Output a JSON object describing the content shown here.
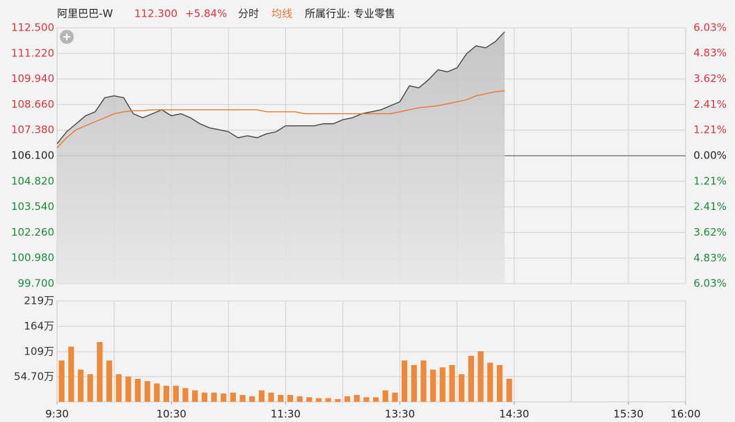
{
  "header": {
    "name": "阿里巴巴-W",
    "price": "112.300",
    "change": "+5.84%",
    "industry": "所属行业: 专业零售"
  },
  "chart_data": [
    {
      "type": "line",
      "xlim": [
        0,
        330
      ],
      "x": [
        0,
        5,
        10,
        15,
        20,
        25,
        30,
        35,
        40,
        45,
        50,
        55,
        60,
        65,
        70,
        75,
        80,
        85,
        90,
        95,
        100,
        105,
        110,
        115,
        120,
        125,
        130,
        135,
        140,
        145,
        150,
        155,
        160,
        165,
        170,
        175,
        180,
        185,
        190,
        195,
        200,
        205,
        210,
        215,
        220,
        225,
        230,
        235
      ],
      "series": [
        {
          "name": "分时",
          "color": "#444444",
          "values": [
            106.7,
            107.3,
            107.7,
            108.1,
            108.3,
            109.0,
            109.1,
            109.0,
            108.2,
            108.0,
            108.2,
            108.4,
            108.1,
            108.2,
            108.0,
            107.7,
            107.5,
            107.4,
            107.3,
            107.0,
            107.1,
            107.0,
            107.2,
            107.3,
            107.6,
            107.6,
            107.6,
            107.6,
            107.7,
            107.7,
            107.9,
            108.0,
            108.2,
            108.3,
            108.4,
            108.6,
            108.8,
            109.6,
            109.5,
            109.9,
            110.4,
            110.3,
            110.5,
            111.2,
            111.6,
            111.5,
            111.8,
            112.3
          ]
        },
        {
          "name": "均线",
          "color": "#e8762d",
          "values": [
            106.5,
            107.0,
            107.4,
            107.6,
            107.8,
            108.0,
            108.2,
            108.3,
            108.35,
            108.35,
            108.4,
            108.4,
            108.4,
            108.4,
            108.4,
            108.4,
            108.4,
            108.4,
            108.4,
            108.4,
            108.4,
            108.4,
            108.3,
            108.3,
            108.3,
            108.3,
            108.2,
            108.2,
            108.2,
            108.2,
            108.2,
            108.2,
            108.2,
            108.2,
            108.2,
            108.2,
            108.3,
            108.4,
            108.5,
            108.55,
            108.6,
            108.7,
            108.8,
            108.9,
            109.1,
            109.2,
            109.3,
            109.35
          ]
        }
      ],
      "ylim": [
        99.7,
        112.5
      ],
      "yticks": [
        {
          "value": 112.5,
          "label": "112.500"
        },
        {
          "value": 111.22,
          "label": "111.220"
        },
        {
          "value": 109.94,
          "label": "109.940"
        },
        {
          "value": 108.66,
          "label": "108.660"
        },
        {
          "value": 107.38,
          "label": "107.380"
        },
        {
          "value": 106.1,
          "label": "106.100"
        },
        {
          "value": 104.82,
          "label": "104.820"
        },
        {
          "value": 103.54,
          "label": "103.540"
        },
        {
          "value": 102.26,
          "label": "102.260"
        },
        {
          "value": 100.98,
          "label": "100.980"
        },
        {
          "value": 99.7,
          "label": "99.700"
        }
      ],
      "y2lim": [
        -6.03,
        6.03
      ],
      "y2ticks": [
        {
          "value": 6.03,
          "label": "6.03%"
        },
        {
          "value": 4.83,
          "label": "4.83%"
        },
        {
          "value": 3.62,
          "label": "3.62%"
        },
        {
          "value": 2.41,
          "label": "2.41%"
        },
        {
          "value": 1.21,
          "label": "1.21%"
        },
        {
          "value": 0,
          "label": "0.00%"
        },
        {
          "value": -1.21,
          "label": "1.21%"
        },
        {
          "value": -2.41,
          "label": "2.41%"
        },
        {
          "value": -3.62,
          "label": "3.62%"
        },
        {
          "value": -4.83,
          "label": "4.83%"
        },
        {
          "value": -6.03,
          "label": "6.03%"
        }
      ],
      "grid": true
    },
    {
      "type": "bar",
      "xlim": [
        0,
        330
      ],
      "color": "#f0883a",
      "x": [
        0,
        5,
        10,
        15,
        20,
        25,
        30,
        35,
        40,
        45,
        50,
        55,
        60,
        65,
        70,
        75,
        80,
        85,
        90,
        95,
        100,
        105,
        110,
        115,
        120,
        125,
        130,
        135,
        140,
        145,
        150,
        155,
        160,
        165,
        170,
        175,
        180,
        185,
        190,
        195,
        200,
        205,
        210,
        215,
        220,
        225,
        230,
        235
      ],
      "values": [
        90,
        120,
        70,
        60,
        130,
        90,
        60,
        55,
        50,
        45,
        40,
        35,
        35,
        30,
        25,
        20,
        20,
        18,
        20,
        15,
        12,
        25,
        20,
        15,
        15,
        12,
        10,
        8,
        8,
        6,
        12,
        15,
        10,
        10,
        25,
        20,
        90,
        80,
        90,
        70,
        75,
        80,
        60,
        100,
        110,
        85,
        80,
        50
      ],
      "ylim": [
        0,
        219
      ],
      "yticks": [
        {
          "value": 219,
          "label": "219万"
        },
        {
          "value": 164,
          "label": "164万"
        },
        {
          "value": 109,
          "label": "109万"
        },
        {
          "value": 54.7,
          "label": "54.70万"
        }
      ],
      "xticks": [
        {
          "value": 0,
          "label": "9:30"
        },
        {
          "value": 60,
          "label": "10:30"
        },
        {
          "value": 120,
          "label": "11:30"
        },
        {
          "value": 180,
          "label": "13:30"
        },
        {
          "value": 240,
          "label": "14:30"
        },
        {
          "value": 300,
          "label": "15:30"
        },
        {
          "value": 330,
          "label": "16:00"
        }
      ],
      "grid": true
    }
  ]
}
